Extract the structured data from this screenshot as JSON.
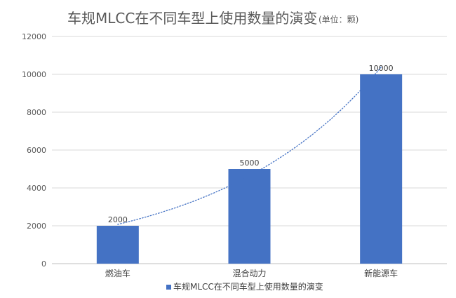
{
  "chart_data": {
    "type": "bar",
    "title": "车规MLCC在不同车型上使用数量的演变",
    "subtitle": "(单位：颗)",
    "categories": [
      "燃油车",
      "混合动力",
      "新能源车"
    ],
    "series": [
      {
        "name": "车规MLCC在不同车型上使用数量的演变",
        "values": [
          2000,
          5000,
          10000
        ],
        "color": "#4472C4"
      }
    ],
    "data_labels": [
      "2000",
      "5000",
      "10000"
    ],
    "y_ticks": [
      "0",
      "2000",
      "4000",
      "6000",
      "8000",
      "10000",
      "12000"
    ],
    "ylim": [
      0,
      12000
    ],
    "grid": true,
    "trendline": {
      "type": "exponential",
      "style": "dotted",
      "color": "#4472C4"
    },
    "legend": {
      "position": "bottom",
      "label": "车规MLCC在不同车型上使用数量的演变"
    }
  }
}
